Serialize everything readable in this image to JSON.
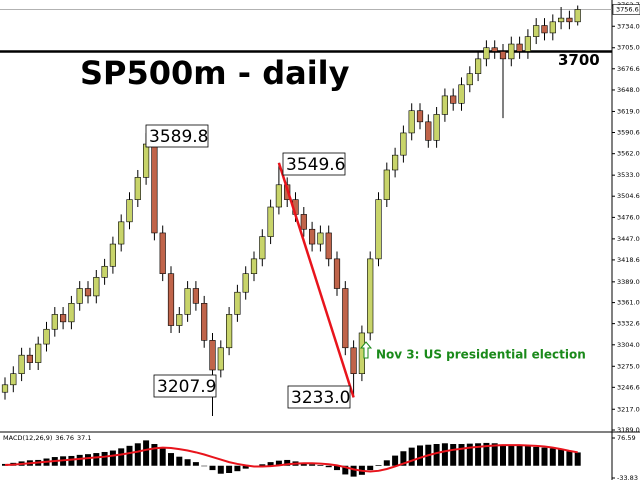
{
  "chart_data": {
    "type": "candlestick",
    "title": "SP500m - daily",
    "open": [
      3240,
      3250,
      3265,
      3290,
      3280,
      3305,
      3325,
      3345,
      3335,
      3360,
      3380,
      3370,
      3395,
      3410,
      3440,
      3470,
      3500,
      3530,
      3575,
      3455,
      3400,
      3330,
      3345,
      3380,
      3360,
      3310,
      3270,
      3300,
      3345,
      3375,
      3400,
      3420,
      3450,
      3490,
      3520,
      3500,
      3480,
      3460,
      3440,
      3455,
      3420,
      3380,
      3300,
      3265,
      3320,
      3420,
      3500,
      3540,
      3560,
      3590,
      3620,
      3605,
      3580,
      3615,
      3640,
      3630,
      3655,
      3670,
      3690,
      3705,
      3700,
      3690,
      3710,
      3700,
      3720,
      3735,
      3725,
      3740,
      3745,
      3740
    ],
    "high": [
      3260,
      3275,
      3300,
      3300,
      3315,
      3335,
      3355,
      3355,
      3370,
      3390,
      3390,
      3405,
      3420,
      3450,
      3480,
      3510,
      3540,
      3589.8,
      3585,
      3465,
      3410,
      3355,
      3390,
      3390,
      3370,
      3320,
      3310,
      3355,
      3385,
      3410,
      3430,
      3460,
      3500,
      3549.6,
      3530,
      3510,
      3490,
      3470,
      3465,
      3465,
      3430,
      3390,
      3310,
      3330,
      3430,
      3510,
      3550,
      3570,
      3600,
      3630,
      3630,
      3615,
      3625,
      3650,
      3650,
      3665,
      3680,
      3700,
      3715,
      3715,
      3710,
      3720,
      3720,
      3730,
      3745,
      3745,
      3750,
      3760,
      3755,
      3762
    ],
    "low": [
      3230,
      3240,
      3255,
      3270,
      3270,
      3295,
      3315,
      3325,
      3325,
      3350,
      3360,
      3360,
      3385,
      3400,
      3430,
      3460,
      3490,
      3520,
      3445,
      3390,
      3320,
      3320,
      3335,
      3350,
      3300,
      3207.9,
      3260,
      3290,
      3335,
      3365,
      3390,
      3410,
      3440,
      3480,
      3490,
      3470,
      3450,
      3430,
      3430,
      3410,
      3370,
      3290,
      3233.0,
      3255,
      3310,
      3410,
      3490,
      3530,
      3550,
      3580,
      3595,
      3570,
      3570,
      3605,
      3620,
      3620,
      3645,
      3660,
      3680,
      3690,
      3610,
      3680,
      3690,
      3690,
      3710,
      3715,
      3715,
      3730,
      3730,
      3735
    ],
    "close": [
      3250,
      3265,
      3290,
      3280,
      3305,
      3325,
      3345,
      3335,
      3360,
      3380,
      3370,
      3395,
      3410,
      3440,
      3470,
      3500,
      3530,
      3575,
      3455,
      3400,
      3330,
      3345,
      3380,
      3360,
      3310,
      3270,
      3300,
      3345,
      3375,
      3400,
      3420,
      3450,
      3490,
      3520,
      3500,
      3480,
      3460,
      3440,
      3455,
      3420,
      3380,
      3300,
      3265,
      3320,
      3420,
      3500,
      3540,
      3560,
      3590,
      3620,
      3605,
      3580,
      3615,
      3640,
      3630,
      3655,
      3670,
      3690,
      3705,
      3700,
      3690,
      3710,
      3700,
      3720,
      3735,
      3725,
      3740,
      3745,
      3740,
      3756.6
    ],
    "up_color": "#c8d46a",
    "down_color": "#c0644a",
    "ylim": [
      3189,
      3762.7
    ],
    "yticks": [
      {
        "value": 3762.7,
        "label": "3762.7"
      },
      {
        "value": 3734,
        "label": "3734.0"
      },
      {
        "value": 3705,
        "label": "3705.0"
      },
      {
        "value": 3676.6,
        "label": "3676.6"
      },
      {
        "value": 3648,
        "label": "3648.0"
      },
      {
        "value": 3619,
        "label": "3619.0"
      },
      {
        "value": 3590.6,
        "label": "3590.6"
      },
      {
        "value": 3562,
        "label": "3562.0"
      },
      {
        "value": 3533,
        "label": "3533.0"
      },
      {
        "value": 3504.6,
        "label": "3504.6"
      },
      {
        "value": 3476,
        "label": "3476.0"
      },
      {
        "value": 3447,
        "label": "3447.0"
      },
      {
        "value": 3418.6,
        "label": "3418.6"
      },
      {
        "value": 3389,
        "label": "3389.0"
      },
      {
        "value": 3361,
        "label": "3361.0"
      },
      {
        "value": 3332.6,
        "label": "3332.6"
      },
      {
        "value": 3304,
        "label": "3304.0"
      },
      {
        "value": 3275,
        "label": "3275.0"
      },
      {
        "value": 3246.6,
        "label": "3246.6"
      },
      {
        "value": 3217,
        "label": "3217.0"
      },
      {
        "value": 3189,
        "label": "3189.0"
      }
    ],
    "current_price": 3756.6,
    "level": 3700,
    "annotations": [
      {
        "text": "3589.8"
      },
      {
        "text": "3549.6"
      },
      {
        "text": "3207.9"
      },
      {
        "text": "3233.0"
      },
      {
        "text": "Nov 3: US presidential election"
      }
    ],
    "indicator": {
      "name": "MACD(12,26,9)",
      "histogram": [
        5,
        8,
        12,
        15,
        16,
        20,
        24,
        26,
        27,
        30,
        32,
        35,
        38,
        42,
        48,
        55,
        62,
        70,
        60,
        48,
        35,
        25,
        18,
        10,
        0,
        -12,
        -22,
        -20,
        -15,
        -8,
        -2,
        4,
        10,
        14,
        16,
        12,
        8,
        4,
        2,
        -4,
        -12,
        -24,
        -30,
        -25,
        -12,
        2,
        15,
        28,
        40,
        50,
        56,
        58,
        60,
        62,
        60,
        60,
        61,
        62,
        63,
        62,
        58,
        57,
        56,
        55,
        52,
        50,
        48,
        45,
        40,
        36.76
      ],
      "signal": [
        2,
        3,
        5,
        7,
        9,
        11,
        13,
        15,
        17,
        19,
        21,
        23,
        25,
        28,
        31,
        35,
        39,
        44,
        48,
        50,
        49,
        46,
        42,
        37,
        31,
        24,
        17,
        10,
        5,
        1,
        -2,
        -2,
        -1,
        1,
        4,
        6,
        7,
        7,
        6,
        4,
        1,
        -4,
        -10,
        -14,
        -16,
        -14,
        -9,
        -2,
        6,
        14,
        22,
        29,
        35,
        40,
        44,
        47,
        50,
        52,
        54,
        56,
        57,
        57,
        57,
        56,
        55,
        53,
        50,
        46,
        41,
        37.1
      ],
      "hist_color": "#000000",
      "signal_color": "#e8141c",
      "ylim": [
        -33.83,
        76.59
      ],
      "yticks": [
        76.59,
        -33.83
      ]
    }
  }
}
